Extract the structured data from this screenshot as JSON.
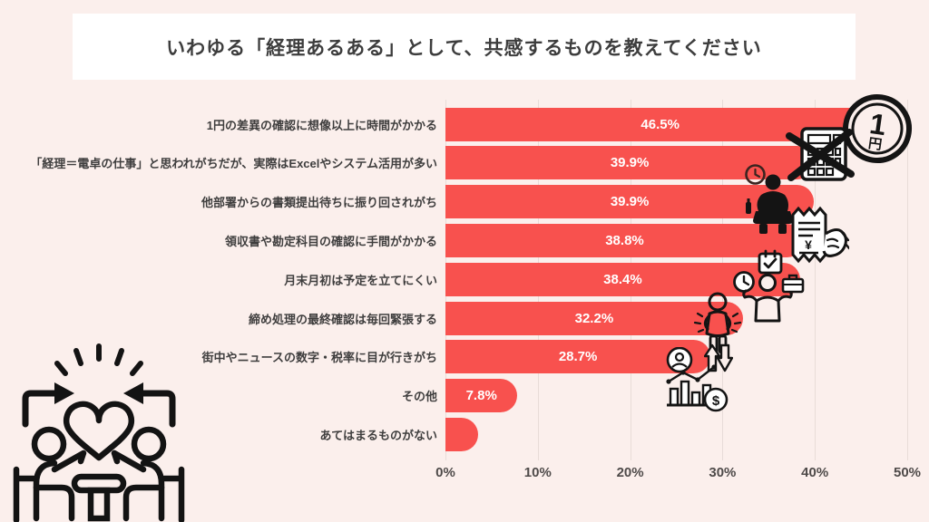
{
  "page": {
    "background_color": "#FBEFEC"
  },
  "header": {
    "title": "いわゆる「経理あるある」として、共感するものを教えてください",
    "box_color": "#FFFFFF",
    "text_color": "#3D3D3D"
  },
  "chart_data": {
    "type": "bar",
    "orientation": "horizontal",
    "title": "いわゆる「経理あるある」として、共感するものを教えてください",
    "categories": [
      "1円の差異の確認に想像以上に時間がかかる",
      "「経理＝電卓の仕事」と思われがちだが、実際はExcelやシステム活用が多い",
      "他部署からの書類提出待ちに振り回されがち",
      "領収書や勘定科目の確認に手間がかかる",
      "月末月初は予定を立てにくい",
      "締め処理の最終確認は毎回緊張する",
      "街中やニュースの数字・税率に目が行きがち",
      "その他",
      "あてはまるものがない"
    ],
    "values": [
      46.5,
      39.9,
      39.9,
      38.8,
      38.4,
      32.2,
      28.7,
      7.8,
      3.5
    ],
    "value_labels": [
      "46.5%",
      "39.9%",
      "39.9%",
      "38.8%",
      "38.4%",
      "32.2%",
      "28.7%",
      "7.8%",
      ""
    ],
    "xlabel": "",
    "ylabel": "",
    "xlim": [
      0,
      50
    ],
    "x_ticks": [
      "0%",
      "10%",
      "20%",
      "30%",
      "40%",
      "50%"
    ],
    "x_tick_values": [
      0,
      10,
      20,
      30,
      40,
      50
    ],
    "grid": "vertical gridlines on",
    "legend": "none",
    "bar_color": "#F8514E",
    "value_label_color": "#FFFFFF",
    "gridline_color": "#E8DCD8"
  },
  "decorations": {
    "coin_top": "1",
    "coin_bottom": "円",
    "receipt_currency": "¥",
    "dollar_symbol": "$",
    "icons": [
      "one-yen-coin-icon",
      "calculator-crossed-icon",
      "small-clock-icon",
      "sitting-worker-icon",
      "receipt-in-hand-icon",
      "calendar-check-icon",
      "clock-icon",
      "shrug-person-icon",
      "briefcase-icon",
      "stressed-person-icon",
      "up-down-arrows-icon",
      "finance-chart-person-icon",
      "meeting-table-heart-illustration"
    ]
  }
}
